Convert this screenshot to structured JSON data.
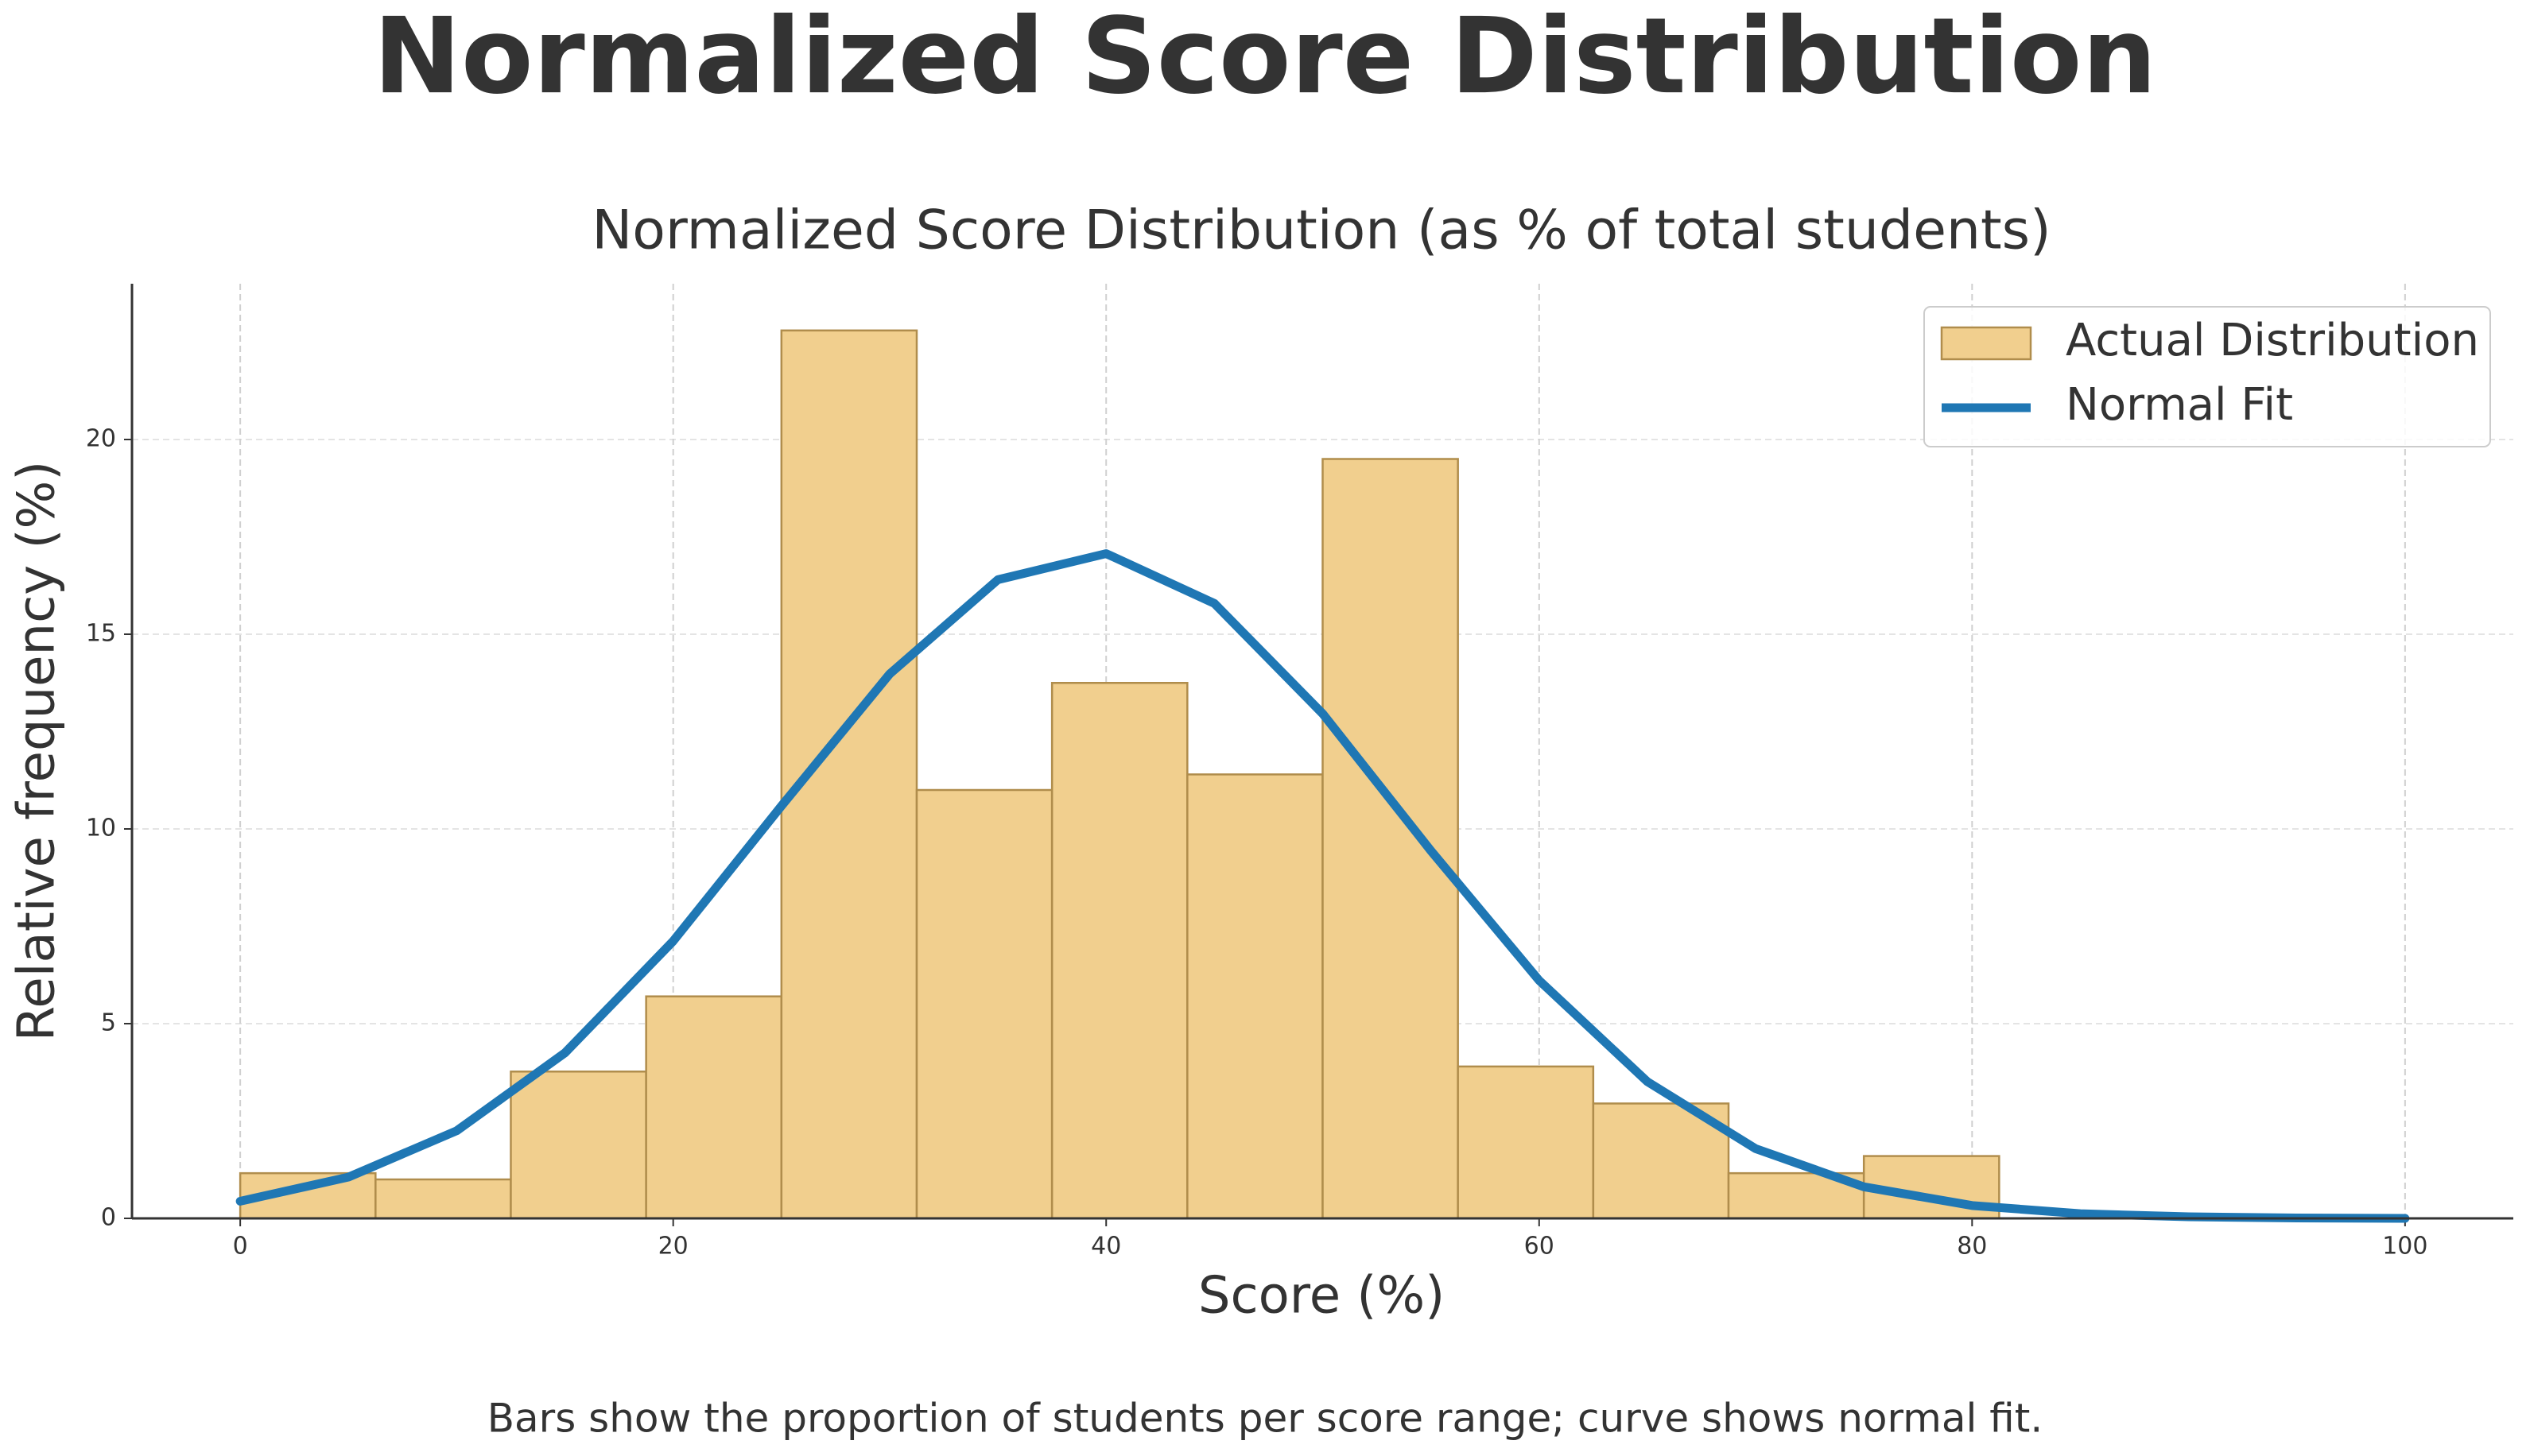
{
  "chart_data": {
    "type": "histogram",
    "suptitle": "Normalized Score Distribution",
    "title": "Normalized Score Distribution (as % of total students)",
    "xlabel": "Score (%)",
    "ylabel": "Relative frequency (%)",
    "caption": "Bars show the proportion of students per score range; curve shows normal fit.",
    "xlim": [
      -5,
      105
    ],
    "xticks": [
      0,
      20,
      40,
      60,
      80,
      100
    ],
    "ylim": [
      0,
      24
    ],
    "yticks": [
      0,
      5,
      10,
      15,
      20
    ],
    "grid": true,
    "legend": "upper right",
    "series": [
      {
        "name": "Actual Distribution",
        "type": "histogram",
        "color": "#f1cf8e",
        "edgecolor": "#b08d4c",
        "bins": [
          0,
          6.25,
          12.5,
          18.75,
          25,
          31.25,
          37.5,
          43.75,
          50,
          56.25,
          62.5,
          68.75,
          75,
          81.25,
          87.5,
          93.75,
          100
        ],
        "values": [
          1.16,
          1.0,
          3.77,
          5.7,
          22.8,
          11.0,
          13.75,
          11.4,
          19.5,
          3.9,
          2.95,
          1.16,
          1.6,
          0,
          0,
          0
        ]
      },
      {
        "name": "Normal Fit",
        "type": "line",
        "color": "#1f77b4",
        "x": [
          0,
          5,
          10,
          15,
          20,
          25,
          30,
          35,
          40,
          45,
          50,
          55,
          60,
          65,
          70,
          75,
          80,
          85,
          90,
          95,
          100
        ],
        "values": [
          0.44,
          1.06,
          2.25,
          4.25,
          7.12,
          10.59,
          13.98,
          16.4,
          17.07,
          15.79,
          12.96,
          9.44,
          6.11,
          3.51,
          1.79,
          0.81,
          0.33,
          0.12,
          0.04,
          0.01,
          0.0
        ]
      }
    ]
  }
}
